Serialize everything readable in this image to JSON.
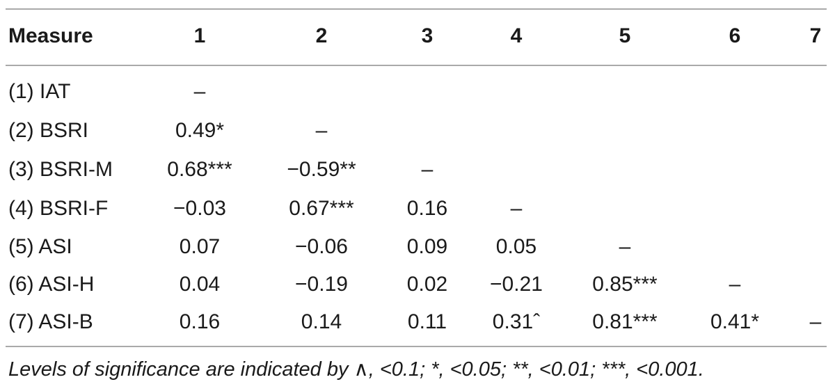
{
  "table": {
    "headers": [
      "Measure",
      "1",
      "2",
      "3",
      "4",
      "5",
      "6",
      "7"
    ],
    "rows": [
      {
        "label": "(1) IAT",
        "cells": [
          "–",
          "",
          "",
          "",
          "",
          "",
          ""
        ]
      },
      {
        "label": "(2) BSRI",
        "cells": [
          "0.49*",
          "–",
          "",
          "",
          "",
          "",
          ""
        ]
      },
      {
        "label": "(3) BSRI-M",
        "cells": [
          "0.68***",
          "−0.59**",
          "–",
          "",
          "",
          "",
          ""
        ]
      },
      {
        "label": "(4) BSRI-F",
        "cells": [
          "−0.03",
          "0.67***",
          "0.16",
          "–",
          "",
          "",
          ""
        ]
      },
      {
        "label": "(5) ASI",
        "cells": [
          "0.07",
          "−0.06",
          "0.09",
          "0.05",
          "–",
          "",
          ""
        ]
      },
      {
        "label": "(6) ASI-H",
        "cells": [
          "0.04",
          "−0.19",
          "0.02",
          "−0.21",
          "0.85***",
          "–",
          ""
        ]
      },
      {
        "label": "(7) ASI-B",
        "cells": [
          "0.16",
          "0.14",
          "0.11",
          "0.31ˆ",
          "0.81***",
          "0.41*",
          "–"
        ]
      }
    ]
  },
  "footnote": "Levels of significance are indicated by ∧, <0.1; *, <0.05; **, <0.01; ***, <0.001."
}
